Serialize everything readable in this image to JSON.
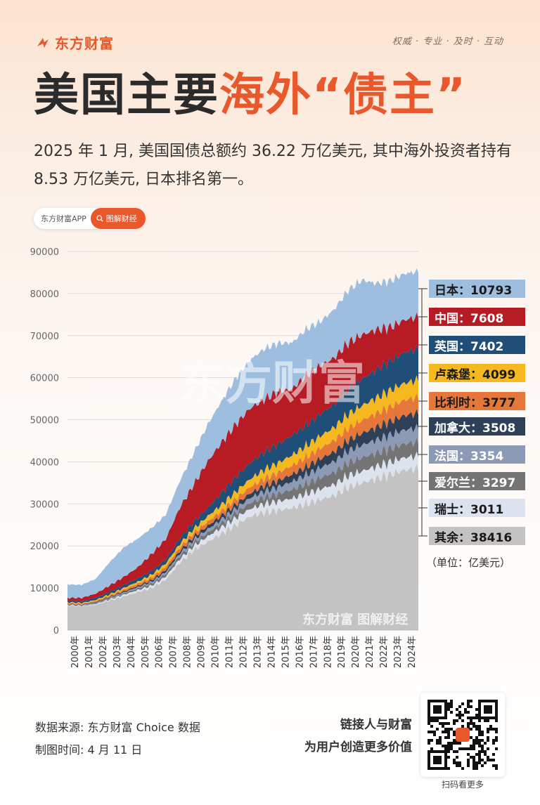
{
  "brand": {
    "logo_text": "东方财富",
    "slogan": "权威 · 专业 · 及时 · 互动"
  },
  "header": {
    "title_part1": "美国主要",
    "title_part2": "海外“债主”",
    "subtitle": "2025 年 1 月, 美国国债总额约 36.22 万亿美元, 其中海外投资者持有 8.53 万亿美元, 日本排名第一。"
  },
  "pill": {
    "app_label": "东方财富APP",
    "button_label": "图解财经",
    "icon": "search-icon"
  },
  "chart_data": {
    "type": "area",
    "stacked": true,
    "unit": "（单位：亿美元）",
    "yticks": [
      "90000",
      "80000",
      "70000",
      "60000",
      "50000",
      "40000",
      "30000",
      "20000",
      "10000",
      "0"
    ],
    "ylim": [
      0,
      90000
    ],
    "xticks": [
      "2000年",
      "2001年",
      "2002年",
      "2003年",
      "2004年",
      "2005年",
      "2006年",
      "2007年",
      "2008年",
      "2009年",
      "2010年",
      "2011年",
      "2012年",
      "2013年",
      "2014年",
      "2015年",
      "2016年",
      "2017年",
      "2018年",
      "2019年",
      "2020年",
      "2021年",
      "2022年",
      "2023年",
      "2024年"
    ],
    "x": [
      2000,
      2001,
      2002,
      2003,
      2004,
      2005,
      2006,
      2007,
      2008,
      2009,
      2010,
      2011,
      2012,
      2013,
      2014,
      2015,
      2016,
      2017,
      2018,
      2019,
      2020,
      2021,
      2022,
      2023,
      2024,
      2025
    ],
    "series": [
      {
        "name": "其余",
        "values": [
          5800,
          5600,
          6000,
          7000,
          8000,
          9000,
          10000,
          12000,
          16000,
          19000,
          21000,
          23000,
          25000,
          27000,
          28000,
          28500,
          29000,
          30000,
          31000,
          32000,
          34000,
          35000,
          36000,
          37000,
          38000,
          38416
        ]
      },
      {
        "name": "瑞士",
        "values": [
          150,
          150,
          200,
          300,
          400,
          500,
          600,
          700,
          900,
          1000,
          1300,
          1500,
          1700,
          1800,
          2000,
          2100,
          2300,
          2400,
          2500,
          2600,
          2700,
          2800,
          2900,
          2950,
          3000,
          3011
        ]
      },
      {
        "name": "爱尔兰",
        "values": [
          100,
          100,
          150,
          200,
          300,
          400,
          500,
          600,
          700,
          800,
          900,
          1000,
          1200,
          1400,
          1600,
          1800,
          2100,
          2400,
          2700,
          2900,
          3100,
          3200,
          3200,
          3250,
          3290,
          3297
        ]
      },
      {
        "name": "法国",
        "values": [
          100,
          100,
          150,
          200,
          250,
          300,
          400,
          500,
          600,
          700,
          800,
          900,
          1000,
          1200,
          1400,
          1600,
          1900,
          2100,
          2400,
          2600,
          2800,
          3000,
          3100,
          3200,
          3300,
          3354
        ]
      },
      {
        "name": "加拿大",
        "values": [
          100,
          100,
          150,
          200,
          250,
          300,
          400,
          500,
          600,
          700,
          800,
          900,
          1000,
          1100,
          1300,
          1500,
          1700,
          1900,
          2100,
          2300,
          2500,
          2800,
          3000,
          3200,
          3400,
          3508
        ]
      },
      {
        "name": "比利时",
        "values": [
          200,
          200,
          250,
          300,
          400,
          500,
          600,
          700,
          800,
          900,
          1000,
          1100,
          1300,
          1500,
          1700,
          1900,
          2100,
          2300,
          2500,
          2700,
          2900,
          3100,
          3300,
          3500,
          3700,
          3777
        ]
      },
      {
        "name": "卢森堡",
        "values": [
          200,
          200,
          250,
          300,
          400,
          500,
          700,
          800,
          900,
          1000,
          1300,
          1500,
          1700,
          1900,
          2100,
          2300,
          2500,
          2700,
          2900,
          3100,
          3300,
          3500,
          3700,
          3900,
          4000,
          4099
        ]
      },
      {
        "name": "英国",
        "values": [
          400,
          400,
          500,
          600,
          700,
          800,
          900,
          1000,
          1300,
          1600,
          2000,
          2800,
          3500,
          3800,
          4200,
          4500,
          4700,
          4900,
          5200,
          5500,
          6000,
          6300,
          6700,
          7000,
          7300,
          7402
        ]
      },
      {
        "name": "中国",
        "values": [
          600,
          800,
          1000,
          1500,
          1900,
          2600,
          4000,
          4800,
          7300,
          8900,
          11000,
          12000,
          12500,
          13000,
          12500,
          12500,
          11000,
          11800,
          11500,
          11000,
          11000,
          10500,
          9500,
          8000,
          7700,
          7608
        ]
      },
      {
        "name": "日本",
        "values": [
          3200,
          3100,
          3500,
          5500,
          7000,
          6800,
          6200,
          5800,
          6300,
          7500,
          8800,
          9900,
          11000,
          11500,
          12000,
          11500,
          11000,
          11000,
          10500,
          11500,
          12500,
          13000,
          11000,
          11000,
          11000,
          10793
        ]
      }
    ],
    "colors": [
      "#c3c3c3",
      "#dde3ee",
      "#747474",
      "#8d9ab6",
      "#2d4058",
      "#e6773a",
      "#f5b81e",
      "#1f4e79",
      "#b71c24",
      "#9ebee0"
    ],
    "legend": [
      {
        "label": "日本：10793",
        "bg": "#9ebee0",
        "fg": "#1a1a1a"
      },
      {
        "label": "中国：7608",
        "bg": "#b71c24",
        "fg": "#ffffff"
      },
      {
        "label": "英国：7402",
        "bg": "#1f4e79",
        "fg": "#ffffff"
      },
      {
        "label": "卢森堡：4099",
        "bg": "#f5b81e",
        "fg": "#1a1a1a"
      },
      {
        "label": "比利时：3777",
        "bg": "#e6773a",
        "fg": "#1a1a1a"
      },
      {
        "label": "加拿大：3508",
        "bg": "#2d4058",
        "fg": "#ffffff"
      },
      {
        "label": "法国：3354",
        "bg": "#8d9ab6",
        "fg": "#ffffff"
      },
      {
        "label": "爱尔兰：3297",
        "bg": "#747474",
        "fg": "#ffffff"
      },
      {
        "label": "瑞士：3011",
        "bg": "#dde3ee",
        "fg": "#1a1a1a"
      },
      {
        "label": "其余：38416",
        "bg": "#c3c3c3",
        "fg": "#1a1a1a"
      }
    ],
    "watermark": "东方财富",
    "watermark_small": "东方财富 图解财经"
  },
  "footer": {
    "source": "数据来源: 东方财富 Choice 数据",
    "date": "制图时间: 4 月 11 日",
    "tagline1": "链接人与财富",
    "tagline2": "为用户创造更多价值",
    "qr_caption": "扫码看更多",
    "qr_icon": "qr-code-icon"
  }
}
